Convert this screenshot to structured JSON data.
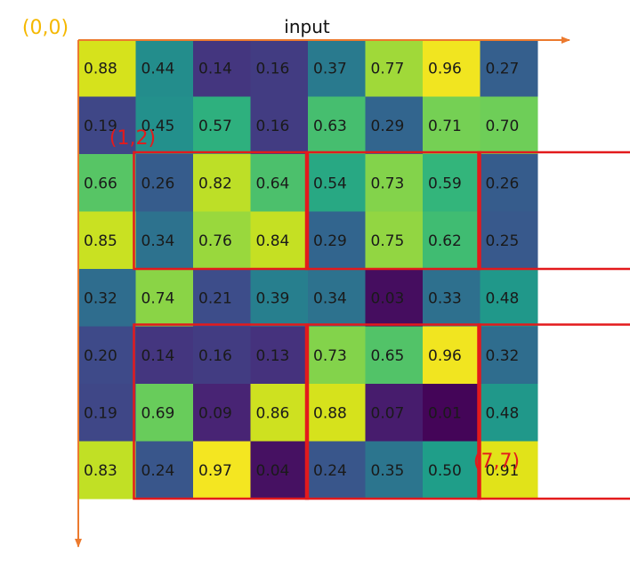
{
  "title": "input",
  "origin_label": "(0,0)",
  "colors": {
    "origin_label": "#f5b800",
    "axes": "#ec7a2e",
    "highlight": "#e31a1c",
    "corner_labels": "#e31a1c"
  },
  "grid": {
    "rows": 8,
    "cols": 8,
    "colormap": "viridis",
    "values": [
      [
        0.88,
        0.44,
        0.14,
        0.16,
        0.37,
        0.77,
        0.96,
        0.27
      ],
      [
        0.19,
        0.45,
        0.57,
        0.16,
        0.63,
        0.29,
        0.71,
        0.7
      ],
      [
        0.66,
        0.26,
        0.82,
        0.64,
        0.54,
        0.73,
        0.59,
        0.26
      ],
      [
        0.85,
        0.34,
        0.76,
        0.84,
        0.29,
        0.75,
        0.62,
        0.25
      ],
      [
        0.32,
        0.74,
        0.21,
        0.39,
        0.34,
        0.03,
        0.33,
        0.48
      ],
      [
        0.2,
        0.14,
        0.16,
        0.13,
        0.73,
        0.65,
        0.96,
        0.32
      ],
      [
        0.19,
        0.69,
        0.09,
        0.86,
        0.88,
        0.07,
        0.01,
        0.48
      ],
      [
        0.83,
        0.24,
        0.97,
        0.04,
        0.24,
        0.35,
        0.5,
        0.91
      ]
    ]
  },
  "highlight_region": {
    "label_start": "(1,2)",
    "label_end": "(7,7)",
    "row_start": 2,
    "col_start": 1,
    "row_end": 7,
    "col_end": 7,
    "block_rows": 2,
    "block_cols": 2
  }
}
